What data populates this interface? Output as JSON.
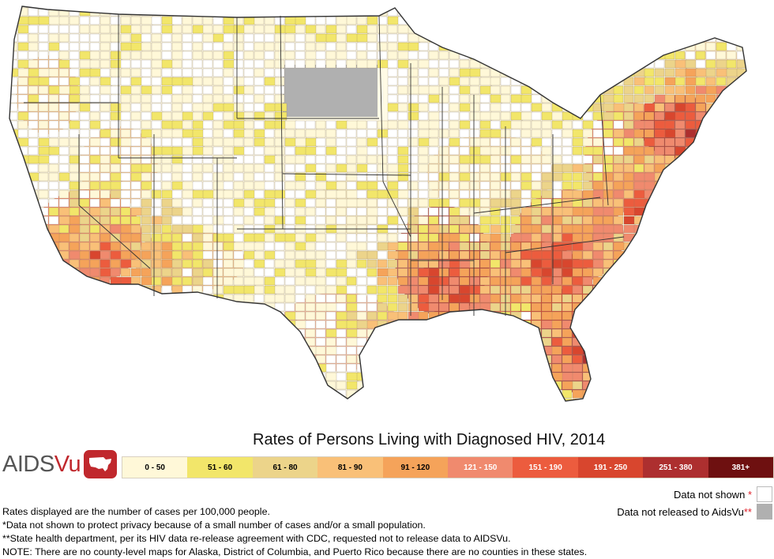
{
  "map": {
    "subject": "Rates of Persons Living with Diagnosed HIV by county, contiguous United States"
  },
  "title": "Rates of Persons Living with Diagnosed HIV, 2014",
  "logo": {
    "part1": "AIDS",
    "part2": "Vu",
    "icon": "us-map-icon"
  },
  "legend": {
    "bins": [
      {
        "label": "0 - 50",
        "color": "#fff8d8",
        "text_color": "#000"
      },
      {
        "label": "51 - 60",
        "color": "#f2e66a",
        "text_color": "#000"
      },
      {
        "label": "61 - 80",
        "color": "#ecd48a",
        "text_color": "#000"
      },
      {
        "label": "81 - 90",
        "color": "#f9c078",
        "text_color": "#000"
      },
      {
        "label": "91 - 120",
        "color": "#f5a35a",
        "text_color": "#000"
      },
      {
        "label": "121 - 150",
        "color": "#f08a6e",
        "text_color": "#ffffff"
      },
      {
        "label": "151 - 190",
        "color": "#ec5c3e",
        "text_color": "#ffffff"
      },
      {
        "label": "191 - 250",
        "color": "#d8462e",
        "text_color": "#ffffff"
      },
      {
        "label": "251 - 380",
        "color": "#ad2f2f",
        "text_color": "#ffffff"
      },
      {
        "label": "381+",
        "color": "#6e1010",
        "text_color": "#ffffff"
      }
    ],
    "not_shown": {
      "label": "Data not shown",
      "star": "*",
      "color": "#ffffff"
    },
    "not_released": {
      "label": "Data not released to AidsVu",
      "star": "**",
      "color": "#b0b0b0"
    }
  },
  "notes": [
    "Rates displayed are the number of cases per 100,000 people.",
    "*Data not shown to protect privacy because of a small number of cases and/or a small population.",
    "**State health department, per its HIV data re-release agreement with CDC, requested not to release data to AIDSVu.",
    "NOTE: There are no county-level maps for Alaska, District of Columbia, and Puerto Rico because there are no counties in these states."
  ]
}
